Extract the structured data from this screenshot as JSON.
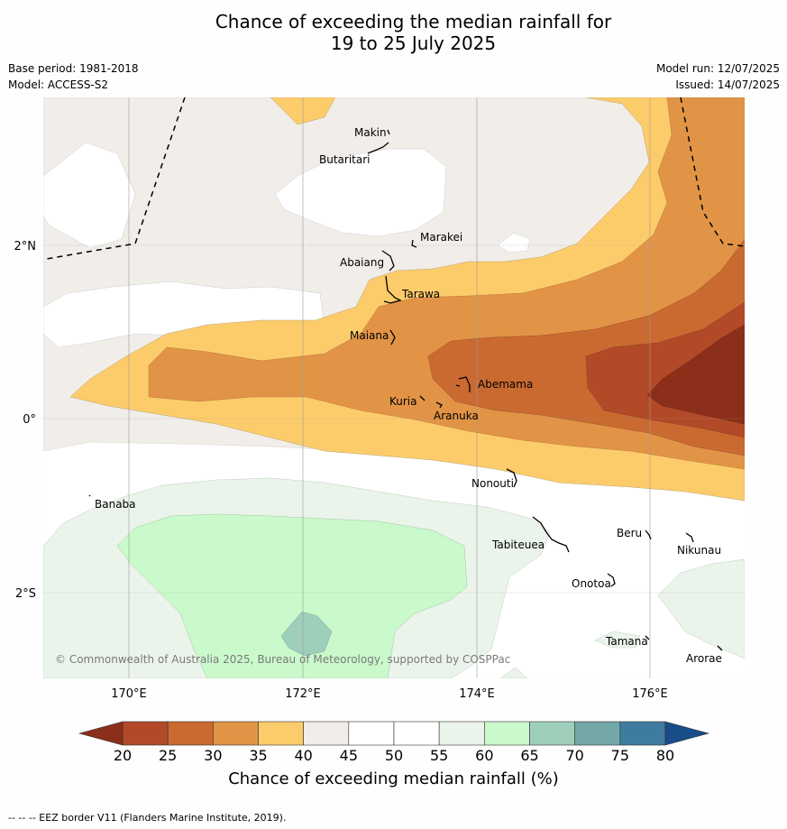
{
  "title_line1": "Chance of exceeding the median rainfall for",
  "title_line2": "19 to 25 July 2025",
  "meta_left": [
    "Base period: 1981-2018",
    "Model: ACCESS-S2"
  ],
  "meta_right": [
    "Model run: 12/07/2025",
    "Issued: 14/07/2025"
  ],
  "credit": "© Commonwealth of Australia 2025, Bureau of Meteorology, supported by COSPPac",
  "x_ticks": [
    "170°E",
    "172°E",
    "174°E",
    "176°E"
  ],
  "y_ticks": [
    "2°N",
    "0°",
    "2°S"
  ],
  "places": [
    "Makin",
    "Butaritari",
    "Marakei",
    "Abaiang",
    "Tarawa",
    "Maiana",
    "Abemama",
    "Kuria",
    "Aranuka",
    "Nonouti",
    "Banaba",
    "Tabiteuea",
    "Beru",
    "Nikunau",
    "Onotoa",
    "Tamana",
    "Arorae"
  ],
  "colorbar": {
    "ticks": [
      "20",
      "25",
      "30",
      "35",
      "40",
      "45",
      "50",
      "55",
      "60",
      "65",
      "70",
      "75",
      "80"
    ],
    "colors": [
      "#b24a28",
      "#ca6a31",
      "#e29446",
      "#fdcc6a",
      "#f1ede8",
      "#ffffff",
      "#ffffff",
      "#ebf4ea",
      "#caf9cc",
      "#9ecfbb",
      "#73a7a8",
      "#3f7b9f"
    ],
    "under_color": "#8c2f1a",
    "over_color": "#184d89",
    "label": "Chance of exceeding median rainfall (%)"
  },
  "footnote": "-- -- -- EEZ border V11 (Flanders Marine Institute, 2019)."
}
